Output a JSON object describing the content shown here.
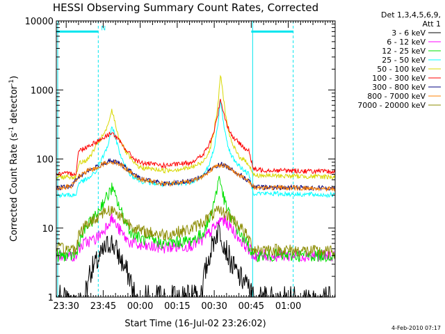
{
  "chart_data": {
    "type": "line",
    "title": "HESSI Observing Summary Count Rates, Corrected",
    "xlabel": "Start Time (16-Jul-02 23:26:02)",
    "ylabel": "Corrected Count Rate (s",
    "ylabel_sup": "-1",
    "ylabel_mid": " detector",
    "ylabel_sup2": "-1",
    "ylabel_end": ")",
    "y_scale": "log",
    "ylim": [
      1,
      10000
    ],
    "xlim_minutes": [
      -34,
      79
    ],
    "y_ticks": [
      {
        "value": 1,
        "label": "1"
      },
      {
        "value": 10,
        "label": "10"
      },
      {
        "value": 100,
        "label": "100"
      },
      {
        "value": 1000,
        "label": "1000"
      },
      {
        "value": 10000,
        "label": "10000"
      }
    ],
    "x_ticks": [
      {
        "minutes": -30,
        "label": "23:30"
      },
      {
        "minutes": -15,
        "label": "23:45"
      },
      {
        "minutes": 0,
        "label": "00:00"
      },
      {
        "minutes": 15,
        "label": "00:15"
      },
      {
        "minutes": 30,
        "label": "00:30"
      },
      {
        "minutes": 45,
        "label": "00:45"
      },
      {
        "minutes": 60,
        "label": "01:00"
      }
    ],
    "legend_header": [
      "Det 1,3,4,5,6,9,",
      "Att 1"
    ],
    "legend_position": "right",
    "annotation_flag": "N",
    "date_stamp": "4-Feb-2010 07:17",
    "night_intervals_minutes": [
      [
        -34,
        -17
      ],
      [
        45,
        62
      ]
    ],
    "night_bar_level": 7000,
    "night_bar_color": "#00e5ee",
    "series": [
      {
        "name": "3 - 6 keV",
        "color": "#000000",
        "points": [
          [
            -34,
            1
          ],
          [
            -23,
            1
          ],
          [
            -21,
            2.2
          ],
          [
            -18,
            3
          ],
          [
            -15,
            4.5
          ],
          [
            -12,
            6.5
          ],
          [
            -10,
            5
          ],
          [
            -7,
            3
          ],
          [
            -4,
            1.8
          ],
          [
            -1,
            1
          ],
          [
            24,
            1
          ],
          [
            26,
            2
          ],
          [
            28,
            4
          ],
          [
            30,
            7
          ],
          [
            32,
            10
          ],
          [
            34,
            6
          ],
          [
            37,
            3
          ],
          [
            40,
            2
          ],
          [
            43,
            1.5
          ],
          [
            46,
            1
          ],
          [
            79,
            1
          ]
        ]
      },
      {
        "name": "6 - 12 keV",
        "color": "#ff00ff",
        "points": [
          [
            -34,
            4
          ],
          [
            -26,
            4
          ],
          [
            -25,
            5
          ],
          [
            -22,
            6.2
          ],
          [
            -18,
            7
          ],
          [
            -15,
            9
          ],
          [
            -13,
            12
          ],
          [
            -11.5,
            14
          ],
          [
            -9,
            10
          ],
          [
            -5,
            6.5
          ],
          [
            0,
            5.4
          ],
          [
            10,
            5.2
          ],
          [
            20,
            5.6
          ],
          [
            25,
            6.5
          ],
          [
            28,
            8.5
          ],
          [
            31,
            11
          ],
          [
            33,
            13.5
          ],
          [
            35,
            12
          ],
          [
            38,
            9
          ],
          [
            41,
            6.5
          ],
          [
            44,
            5
          ],
          [
            46,
            4
          ],
          [
            79,
            4
          ]
        ]
      },
      {
        "name": "12 - 25 keV",
        "color": "#00e000",
        "points": [
          [
            -34,
            4
          ],
          [
            -26,
            4
          ],
          [
            -25,
            6
          ],
          [
            -22,
            10
          ],
          [
            -18,
            15
          ],
          [
            -15,
            24
          ],
          [
            -13,
            30
          ],
          [
            -11.5,
            38
          ],
          [
            -10,
            28
          ],
          [
            -7,
            15
          ],
          [
            -4,
            9
          ],
          [
            0,
            7
          ],
          [
            10,
            6
          ],
          [
            20,
            6.5
          ],
          [
            25,
            8
          ],
          [
            28,
            13
          ],
          [
            30,
            25
          ],
          [
            31,
            35
          ],
          [
            32,
            55
          ],
          [
            33,
            40
          ],
          [
            34,
            25
          ],
          [
            36,
            16
          ],
          [
            39,
            10
          ],
          [
            42,
            7
          ],
          [
            44,
            5.5
          ],
          [
            46,
            4
          ],
          [
            79,
            4
          ]
        ]
      },
      {
        "name": "25 - 50 keV",
        "color": "#00ffff",
        "points": [
          [
            -34,
            30
          ],
          [
            -26,
            30
          ],
          [
            -25,
            45
          ],
          [
            -21,
            52
          ],
          [
            -18,
            65
          ],
          [
            -15,
            110
          ],
          [
            -13,
            160
          ],
          [
            -12,
            220
          ],
          [
            -11.5,
            300
          ],
          [
            -10.5,
            240
          ],
          [
            -9,
            150
          ],
          [
            -7,
            90
          ],
          [
            -4,
            60
          ],
          [
            0,
            48
          ],
          [
            10,
            42
          ],
          [
            20,
            46
          ],
          [
            25,
            55
          ],
          [
            28,
            80
          ],
          [
            30,
            150
          ],
          [
            31.5,
            300
          ],
          [
            32.5,
            700
          ],
          [
            33.5,
            400
          ],
          [
            35,
            180
          ],
          [
            37,
            110
          ],
          [
            40,
            80
          ],
          [
            44,
            60
          ],
          [
            46,
            32
          ],
          [
            79,
            30
          ]
        ]
      },
      {
        "name": "50 - 100 keV",
        "color": "#d8d800",
        "points": [
          [
            -34,
            55
          ],
          [
            -26,
            55
          ],
          [
            -25,
            85
          ],
          [
            -21,
            100
          ],
          [
            -18,
            150
          ],
          [
            -15,
            220
          ],
          [
            -13,
            300
          ],
          [
            -12,
            450
          ],
          [
            -11.5,
            500
          ],
          [
            -10.5,
            380
          ],
          [
            -9,
            220
          ],
          [
            -6,
            130
          ],
          [
            -3,
            90
          ],
          [
            0,
            75
          ],
          [
            10,
            68
          ],
          [
            20,
            74
          ],
          [
            25,
            88
          ],
          [
            28,
            130
          ],
          [
            30,
            260
          ],
          [
            31.5,
            600
          ],
          [
            32.5,
            1650
          ],
          [
            33.5,
            900
          ],
          [
            35,
            350
          ],
          [
            37,
            170
          ],
          [
            40,
            110
          ],
          [
            44,
            85
          ],
          [
            46,
            58
          ],
          [
            79,
            55
          ]
        ]
      },
      {
        "name": "100 - 300 keV",
        "color": "#ff0000",
        "points": [
          [
            -34,
            60
          ],
          [
            -26,
            62
          ],
          [
            -25,
            130
          ],
          [
            -21,
            155
          ],
          [
            -17,
            185
          ],
          [
            -14,
            210
          ],
          [
            -12,
            240
          ],
          [
            -11,
            232
          ],
          [
            -9,
            190
          ],
          [
            -6,
            140
          ],
          [
            -3,
            105
          ],
          [
            0,
            88
          ],
          [
            10,
            80
          ],
          [
            20,
            88
          ],
          [
            25,
            110
          ],
          [
            28,
            160
          ],
          [
            30,
            260
          ],
          [
            31.5,
            450
          ],
          [
            32.5,
            760
          ],
          [
            33.5,
            520
          ],
          [
            35,
            330
          ],
          [
            37,
            220
          ],
          [
            40,
            170
          ],
          [
            44,
            130
          ],
          [
            46,
            70
          ],
          [
            79,
            65
          ]
        ]
      },
      {
        "name": "300 - 800 keV",
        "color": "#000080",
        "points": [
          [
            -34,
            38
          ],
          [
            -28,
            40
          ],
          [
            -25,
            55
          ],
          [
            -22,
            65
          ],
          [
            -18,
            75
          ],
          [
            -15,
            86
          ],
          [
            -12,
            93
          ],
          [
            -9,
            88
          ],
          [
            -6,
            75
          ],
          [
            -3,
            62
          ],
          [
            0,
            52
          ],
          [
            10,
            44
          ],
          [
            20,
            48
          ],
          [
            25,
            56
          ],
          [
            28,
            68
          ],
          [
            31,
            80
          ],
          [
            33,
            84
          ],
          [
            35,
            78
          ],
          [
            38,
            68
          ],
          [
            41,
            57
          ],
          [
            44,
            48
          ],
          [
            46,
            39
          ],
          [
            79,
            38
          ]
        ]
      },
      {
        "name": "800 - 7000 keV",
        "color": "#ff8000",
        "points": [
          [
            -34,
            38
          ],
          [
            -28,
            40
          ],
          [
            -25,
            55
          ],
          [
            -22,
            65
          ],
          [
            -18,
            74
          ],
          [
            -15,
            85
          ],
          [
            -12,
            92
          ],
          [
            -9,
            87
          ],
          [
            -6,
            74
          ],
          [
            -3,
            61
          ],
          [
            0,
            51
          ],
          [
            10,
            43
          ],
          [
            20,
            47
          ],
          [
            25,
            55
          ],
          [
            28,
            67
          ],
          [
            31,
            79
          ],
          [
            33,
            83
          ],
          [
            35,
            77
          ],
          [
            38,
            67
          ],
          [
            41,
            56
          ],
          [
            44,
            47
          ],
          [
            46,
            39
          ],
          [
            79,
            37
          ]
        ]
      },
      {
        "name": "7000 - 20000 keV",
        "color": "#8b8b00",
        "points": [
          [
            -34,
            5
          ],
          [
            -26,
            5
          ],
          [
            -25,
            8
          ],
          [
            -22,
            11
          ],
          [
            -18,
            14
          ],
          [
            -15,
            17
          ],
          [
            -12,
            18.5
          ],
          [
            -9,
            16
          ],
          [
            -5,
            12
          ],
          [
            0,
            9
          ],
          [
            10,
            8
          ],
          [
            20,
            9.5
          ],
          [
            25,
            12
          ],
          [
            28,
            14.5
          ],
          [
            31,
            17
          ],
          [
            33,
            17.5
          ],
          [
            36,
            15
          ],
          [
            39,
            12
          ],
          [
            42,
            9
          ],
          [
            44,
            7
          ],
          [
            46,
            5
          ],
          [
            79,
            4.5
          ]
        ]
      }
    ]
  }
}
